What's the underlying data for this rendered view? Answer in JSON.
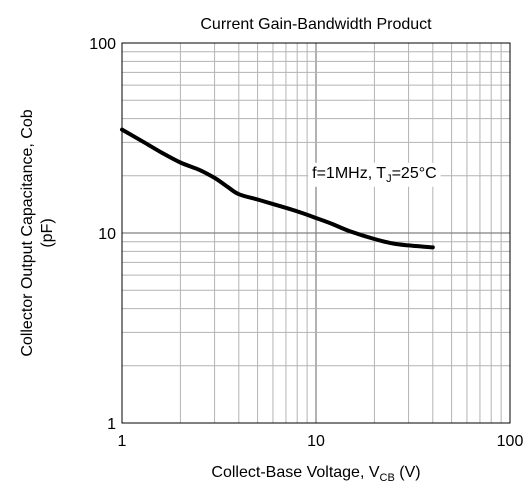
{
  "chart_data": {
    "type": "line",
    "title": "Current Gain-Bandwidth Product",
    "xlabel": {
      "main": "Collect-Base Voltage, V",
      "sub": "CB",
      "tail": " (V)"
    },
    "ylabel": {
      "line1": "Collector Output Capacitance, Cob",
      "line2": "(pF)"
    },
    "x_scale": "log",
    "y_scale": "log",
    "xlim": [
      1,
      100
    ],
    "ylim": [
      1,
      100
    ],
    "x_ticks": [
      "1",
      "10",
      "100"
    ],
    "y_ticks": [
      "1",
      "10",
      "100"
    ],
    "grid": true,
    "annotation": {
      "pre": "f=1MHz, T",
      "sub": "J",
      "post": "=25°C",
      "x": 20,
      "y": 21
    },
    "series": [
      {
        "color": "#000000",
        "x": [
          1,
          1.3,
          1.6,
          2,
          2.5,
          3,
          3.5,
          4,
          5,
          6,
          8,
          10,
          12,
          15,
          20,
          25,
          30,
          40
        ],
        "y": [
          35,
          30,
          26.5,
          23.5,
          21.5,
          19.5,
          17.5,
          16,
          15,
          14.2,
          13,
          12,
          11.2,
          10.2,
          9.3,
          8.8,
          8.6,
          8.4
        ]
      }
    ]
  }
}
